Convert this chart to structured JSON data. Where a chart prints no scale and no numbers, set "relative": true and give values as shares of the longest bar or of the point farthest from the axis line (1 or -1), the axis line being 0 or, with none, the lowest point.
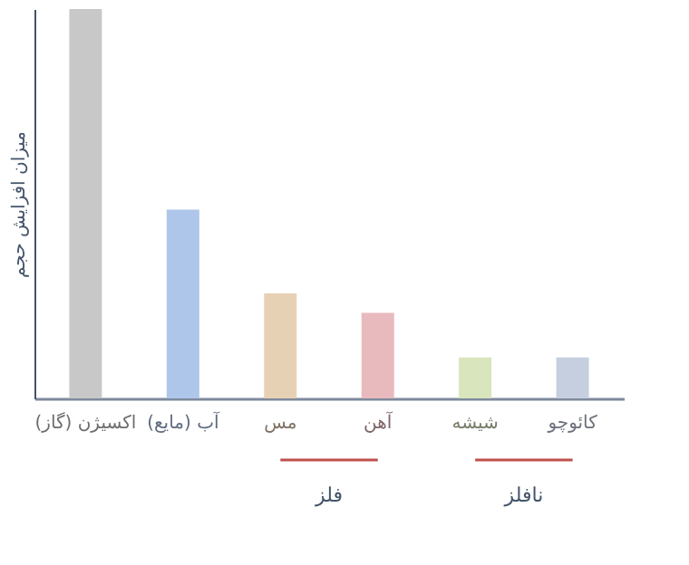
{
  "chart_data": {
    "type": "bar",
    "relative": true,
    "ylabel": "میزان افزایش حجم",
    "categories": [
      "اکسیژن (گاز)",
      "آب (مایع)",
      "مس",
      "آهن",
      "شیشه",
      "کائوچو"
    ],
    "values": [
      1,
      0.485,
      0.27,
      0.22,
      0.105,
      0.105
    ],
    "colors": [
      "#c8c8c8",
      "#aec6ea",
      "#e7d1b5",
      "#e8babd",
      "#d8e5bd",
      "#c6cfe0"
    ],
    "grid": false,
    "annotations": [
      "فلز",
      "نافلز"
    ]
  }
}
